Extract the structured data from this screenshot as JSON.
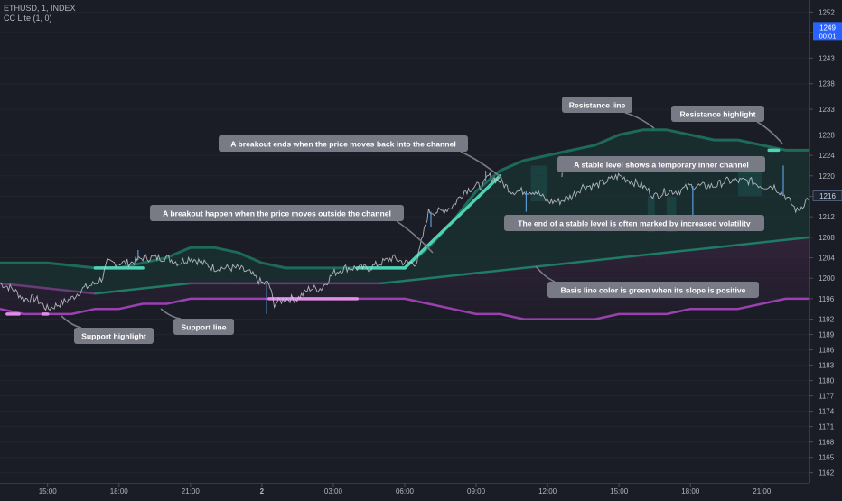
{
  "header": {
    "symbol_line": "ETHUSD, 1, INDEX",
    "indicator_line": "CC Lite (1, 0)"
  },
  "price_axis": {
    "ticks": [
      "1252",
      "1248",
      "1243",
      "1238",
      "1233",
      "1228",
      "1224",
      "1220",
      "1216",
      "1212",
      "1208",
      "1204",
      "1200",
      "1196",
      "1192",
      "1189",
      "1186",
      "1183",
      "1180",
      "1177",
      "1174",
      "1171",
      "1168",
      "1165",
      "1162"
    ],
    "current_price_label": "1249",
    "current_countdown": "00:01",
    "last_value_label": "1216"
  },
  "time_axis": {
    "ticks": [
      "15:00",
      "18:00",
      "21:00",
      "2",
      "03:00",
      "06:00",
      "09:00",
      "12:00",
      "15:00",
      "18:00",
      "21:00"
    ]
  },
  "colors": {
    "background": "#1a1d26",
    "channel_green": "#26a69a",
    "channel_purple": "#9c3fb0",
    "highlight_pink": "#e08ce8",
    "callout_bg": "#787b86",
    "axis_text": "#b2b5be"
  },
  "chart_data": {
    "type": "line",
    "title": "",
    "xlabel": "",
    "ylabel": "",
    "ylim": [
      1160,
      1254
    ],
    "x_range_hours": [
      13.0,
      47.0
    ],
    "y_scale": "linear",
    "series": [
      {
        "role": "price",
        "points": [
          [
            13.0,
            1199
          ],
          [
            13.5,
            1198
          ],
          [
            14.0,
            1196
          ],
          [
            14.5,
            1196
          ],
          [
            15.0,
            1194
          ],
          [
            15.5,
            1195
          ],
          [
            16.0,
            1196
          ],
          [
            16.5,
            1198
          ],
          [
            17.0,
            1199
          ],
          [
            17.3,
            1200
          ],
          [
            17.5,
            1203
          ],
          [
            18.0,
            1203
          ],
          [
            18.5,
            1203
          ],
          [
            19.0,
            1204
          ],
          [
            19.5,
            1204
          ],
          [
            20.0,
            1204
          ],
          [
            20.5,
            1203
          ],
          [
            21.0,
            1204
          ],
          [
            21.5,
            1203
          ],
          [
            22.0,
            1202
          ],
          [
            22.5,
            1202
          ],
          [
            23.0,
            1202
          ],
          [
            23.5,
            1201
          ],
          [
            24.0,
            1199
          ],
          [
            24.3,
            1199
          ],
          [
            24.5,
            1195
          ],
          [
            25.0,
            1196
          ],
          [
            25.5,
            1196
          ],
          [
            26.0,
            1198
          ],
          [
            26.5,
            1198
          ],
          [
            27.0,
            1201
          ],
          [
            27.5,
            1202
          ],
          [
            28.0,
            1202
          ],
          [
            28.5,
            1202
          ],
          [
            29.0,
            1203
          ],
          [
            29.5,
            1204
          ],
          [
            30.0,
            1203
          ],
          [
            30.5,
            1203
          ],
          [
            31.0,
            1213
          ],
          [
            31.5,
            1213
          ],
          [
            32.0,
            1214
          ],
          [
            32.5,
            1217
          ],
          [
            33.0,
            1218
          ],
          [
            33.3,
            1218
          ],
          [
            33.5,
            1220
          ],
          [
            34.0,
            1219
          ],
          [
            34.5,
            1217
          ],
          [
            35.0,
            1217
          ],
          [
            35.5,
            1217
          ],
          [
            36.0,
            1215
          ],
          [
            36.5,
            1215
          ],
          [
            37.0,
            1216
          ],
          [
            37.5,
            1218
          ],
          [
            38.0,
            1218
          ],
          [
            38.5,
            1219
          ],
          [
            39.0,
            1220
          ],
          [
            39.5,
            1219
          ],
          [
            40.0,
            1218
          ],
          [
            40.5,
            1216
          ],
          [
            41.0,
            1217
          ],
          [
            41.5,
            1217
          ],
          [
            42.0,
            1218
          ],
          [
            42.5,
            1218
          ],
          [
            43.0,
            1218
          ],
          [
            43.5,
            1219
          ],
          [
            44.0,
            1219
          ],
          [
            44.5,
            1219
          ],
          [
            45.0,
            1218
          ],
          [
            45.5,
            1218
          ],
          [
            46.0,
            1216
          ],
          [
            46.5,
            1213
          ],
          [
            47.0,
            1216
          ]
        ],
        "spikes": [
          [
            18.8,
            1205.5
          ],
          [
            24.2,
            1193
          ],
          [
            31.1,
            1210
          ],
          [
            33.4,
            1221
          ],
          [
            35.1,
            1213
          ],
          [
            42.1,
            1212
          ],
          [
            45.9,
            1222
          ]
        ]
      },
      {
        "role": "resistance",
        "points": [
          [
            13.0,
            1203
          ],
          [
            15.0,
            1203
          ],
          [
            17.0,
            1202
          ],
          [
            18.0,
            1202
          ],
          [
            19.0,
            1203
          ],
          [
            20.0,
            1204
          ],
          [
            21.0,
            1206
          ],
          [
            22.0,
            1206
          ],
          [
            23.0,
            1205
          ],
          [
            24.0,
            1203
          ],
          [
            25.0,
            1202
          ],
          [
            26.0,
            1202
          ],
          [
            27.0,
            1202
          ],
          [
            28.0,
            1202
          ],
          [
            29.0,
            1202
          ],
          [
            30.0,
            1202
          ],
          [
            31.0,
            1206
          ],
          [
            32.0,
            1211
          ],
          [
            33.0,
            1217
          ],
          [
            34.0,
            1221
          ],
          [
            35.0,
            1223
          ],
          [
            36.0,
            1224
          ],
          [
            37.0,
            1225
          ],
          [
            38.0,
            1226
          ],
          [
            39.0,
            1228
          ],
          [
            40.0,
            1229
          ],
          [
            41.0,
            1229
          ],
          [
            42.0,
            1228
          ],
          [
            43.0,
            1227
          ],
          [
            44.0,
            1227
          ],
          [
            45.0,
            1226
          ],
          [
            46.0,
            1225
          ],
          [
            47.0,
            1225
          ]
        ]
      },
      {
        "role": "basis",
        "points": [
          [
            13.0,
            1199
          ],
          [
            15.0,
            1198
          ],
          [
            17.0,
            1197
          ],
          [
            19.0,
            1198
          ],
          [
            21.0,
            1199
          ],
          [
            23.0,
            1199
          ],
          [
            25.0,
            1199
          ],
          [
            27.0,
            1199
          ],
          [
            29.0,
            1199
          ],
          [
            31.0,
            1200
          ],
          [
            33.0,
            1201
          ],
          [
            35.0,
            1202
          ],
          [
            37.0,
            1203
          ],
          [
            39.0,
            1204
          ],
          [
            41.0,
            1205
          ],
          [
            43.0,
            1206
          ],
          [
            45.0,
            1207
          ],
          [
            47.0,
            1208
          ]
        ]
      },
      {
        "role": "support",
        "points": [
          [
            13.0,
            1194
          ],
          [
            14.0,
            1193
          ],
          [
            15.0,
            1193
          ],
          [
            16.0,
            1193
          ],
          [
            17.0,
            1194
          ],
          [
            18.0,
            1194
          ],
          [
            19.0,
            1195
          ],
          [
            20.0,
            1195
          ],
          [
            21.0,
            1196
          ],
          [
            22.0,
            1196
          ],
          [
            23.0,
            1196
          ],
          [
            24.0,
            1196
          ],
          [
            25.0,
            1196
          ],
          [
            26.0,
            1196
          ],
          [
            27.0,
            1196
          ],
          [
            28.0,
            1196
          ],
          [
            29.0,
            1196
          ],
          [
            30.0,
            1196
          ],
          [
            31.0,
            1195
          ],
          [
            32.0,
            1194
          ],
          [
            33.0,
            1193
          ],
          [
            34.0,
            1193
          ],
          [
            35.0,
            1192
          ],
          [
            36.0,
            1192
          ],
          [
            37.0,
            1192
          ],
          [
            38.0,
            1192
          ],
          [
            39.0,
            1193
          ],
          [
            40.0,
            1193
          ],
          [
            41.0,
            1193
          ],
          [
            42.0,
            1194
          ],
          [
            43.0,
            1194
          ],
          [
            44.0,
            1194
          ],
          [
            45.0,
            1195
          ],
          [
            46.0,
            1196
          ],
          [
            47.0,
            1196
          ]
        ]
      }
    ],
    "resistance_highlights": [
      [
        [
          17.0,
          1202
        ],
        [
          19.0,
          1202
        ]
      ],
      [
        [
          28.0,
          1202
        ],
        [
          30.0,
          1202
        ]
      ],
      [
        [
          30.0,
          1202
        ],
        [
          34.0,
          1220
        ]
      ],
      [
        [
          45.3,
          1225
        ],
        [
          45.7,
          1225
        ]
      ]
    ],
    "support_highlights": [
      [
        [
          13.3,
          1193
        ],
        [
          13.8,
          1193
        ]
      ],
      [
        [
          14.8,
          1193
        ],
        [
          15.0,
          1193
        ]
      ],
      [
        [
          24.3,
          1196
        ],
        [
          25.3,
          1196
        ]
      ],
      [
        [
          25.3,
          1196
        ],
        [
          28.0,
          1196
        ]
      ]
    ],
    "annotations": [
      {
        "text": "A breakout ends when the price moves back into the channel",
        "anchor": [
          33.3,
          1220
        ]
      },
      {
        "text": "Resistance line",
        "anchor": [
          39.5,
          1229
        ]
      },
      {
        "text": "Resistance highlight",
        "anchor": [
          45.5,
          1225
        ]
      },
      {
        "text": "A stable level shows a temporary inner channel",
        "anchor": [
          35.5,
          1221
        ]
      },
      {
        "text": "A breakout happen when the price moves outside the channel",
        "anchor": [
          31.0,
          1205
        ]
      },
      {
        "text": "The end of a stable level is often marked by increased volatility",
        "anchor": null
      },
      {
        "text": "Basis line color is green when its slope is positive",
        "anchor": [
          38.0,
          1201
        ]
      },
      {
        "text": "Support highlight",
        "anchor": null
      },
      {
        "text": "Support line",
        "anchor": [
          17.5,
          1194
        ]
      }
    ]
  }
}
